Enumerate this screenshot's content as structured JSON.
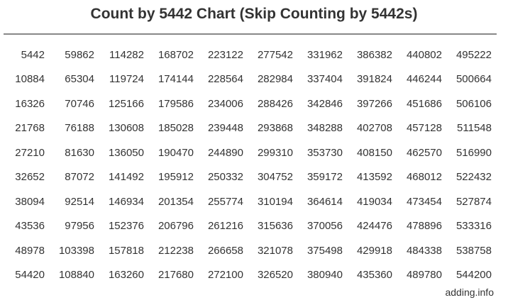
{
  "chart_data": {
    "type": "table",
    "title": "Count by 5442 Chart (Skip Counting by 5442s)",
    "step": 5442,
    "columns": [
      [
        5442,
        10884,
        16326,
        21768,
        27210,
        32652,
        38094,
        43536,
        48978,
        54420
      ],
      [
        59862,
        65304,
        70746,
        76188,
        81630,
        87072,
        92514,
        97956,
        103398,
        108840
      ],
      [
        114282,
        119724,
        125166,
        130608,
        136050,
        141492,
        146934,
        152376,
        157818,
        163260
      ],
      [
        168702,
        174144,
        179586,
        185028,
        190470,
        195912,
        201354,
        206796,
        212238,
        217680
      ],
      [
        223122,
        228564,
        234006,
        239448,
        244890,
        250332,
        255774,
        261216,
        266658,
        272100
      ],
      [
        277542,
        282984,
        288426,
        293868,
        299310,
        304752,
        310194,
        315636,
        321078,
        326520
      ],
      [
        331962,
        337404,
        342846,
        348288,
        353730,
        359172,
        364614,
        370056,
        375498,
        380940
      ],
      [
        386382,
        391824,
        397266,
        402708,
        408150,
        413592,
        419034,
        424476,
        429918,
        435360
      ],
      [
        440802,
        446244,
        451686,
        457128,
        462570,
        468012,
        473454,
        478896,
        484338,
        489780
      ],
      [
        495222,
        500664,
        506106,
        511548,
        516990,
        522432,
        527874,
        533316,
        538758,
        544200
      ]
    ],
    "footer": "adding.info"
  }
}
